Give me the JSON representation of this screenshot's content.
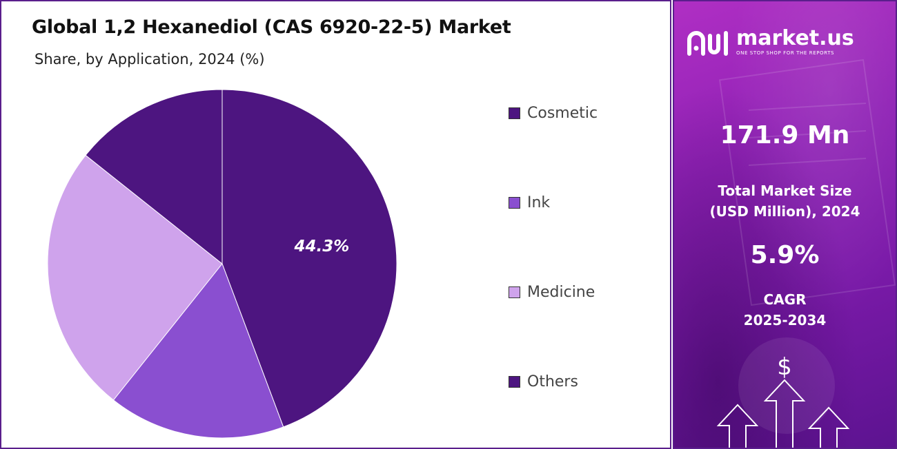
{
  "chart_data": {
    "type": "pie",
    "title": "Global 1,2 Hexanediol (CAS 6920-22-5) Market",
    "subtitle": "Share, by Application, 2024 (%)",
    "categories": [
      "Cosmetic",
      "Ink",
      "Medicine",
      "Others"
    ],
    "values": [
      44.3,
      16.4,
      25.0,
      14.3
    ],
    "data_labels": [
      "44.3%"
    ],
    "colors": [
      "#4d1580",
      "#8a4fd0",
      "#cfa3ec",
      "#4d1580"
    ],
    "legend": "right"
  },
  "sidebar": {
    "logo_text": "market.us",
    "logo_tagline": "ONE STOP SHOP FOR THE REPORTS",
    "market_size_value": "171.9 Mn",
    "market_size_label_1": "Total Market Size",
    "market_size_label_2": "(USD Million), 2024",
    "cagr_value": "5.9%",
    "cagr_label_1": "CAGR",
    "cagr_label_2": "2025-2034",
    "icon": "dollar-growth-arrows-icon"
  }
}
